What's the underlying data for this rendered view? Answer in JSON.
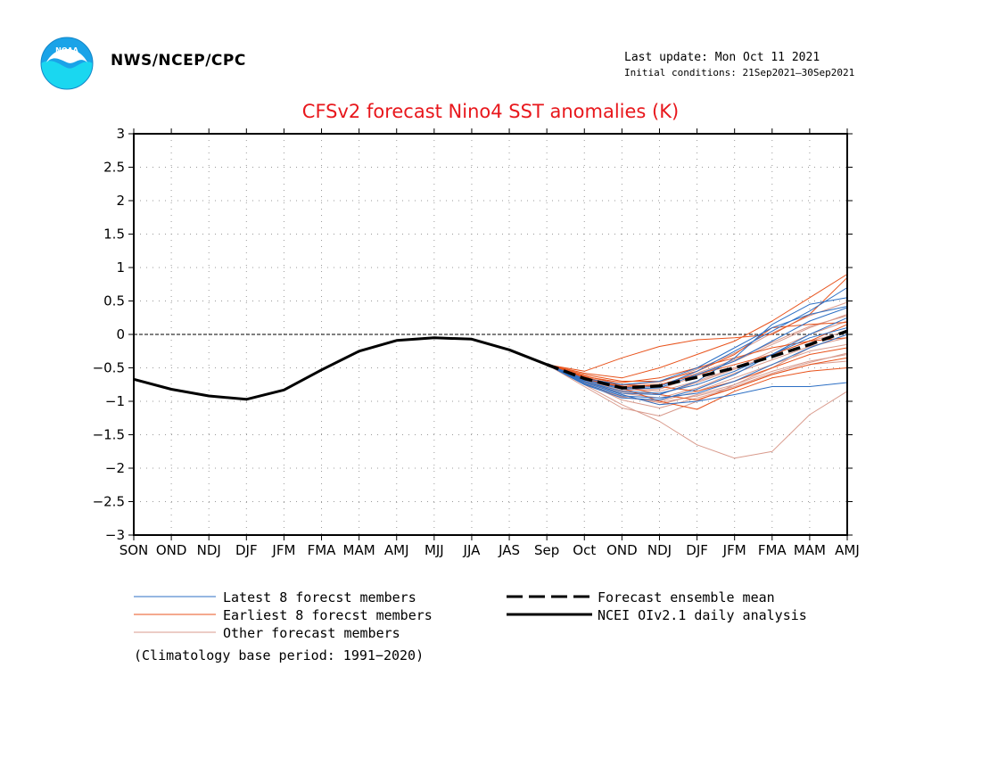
{
  "header": {
    "agency": "NWS/NCEP/CPC",
    "last_update": "Last update: Mon Oct 11 2021",
    "initial_conditions": "Initial conditions: 21Sep2021–30Sep2021",
    "logo_icon": "noaa-logo-icon",
    "logo_text": "NOAA"
  },
  "colors": {
    "title": "#e8171c",
    "latest": "#2c6fc4",
    "earliest": "#e8531c",
    "other": "#d99a8c",
    "mean": "#000000",
    "analysis": "#000000"
  },
  "legend": {
    "latest": "Latest 8 forecst members",
    "earliest": "Earliest 8 forecst members",
    "other": "Other forecast members",
    "mean": "Forecast ensemble mean",
    "analysis": "NCEI OIv2.1 daily analysis",
    "climatology": "(Climatology base period: 1991−2020)"
  },
  "chart_data": {
    "type": "line",
    "title": "CFSv2 forecast Nino4 SST anomalies (K)",
    "xlabel": "",
    "ylabel": "",
    "categories": [
      "SON",
      "OND",
      "NDJ",
      "DJF",
      "JFM",
      "FMA",
      "MAM",
      "AMJ",
      "MJJ",
      "JJA",
      "JAS",
      "Sep",
      "Oct",
      "OND",
      "NDJ",
      "DJF",
      "JFM",
      "FMA",
      "MAM",
      "AMJ"
    ],
    "ylim": [
      -3,
      3
    ],
    "yticks": [
      "3",
      "2.5",
      "2",
      "1.5",
      "1",
      "0.5",
      "0",
      "−0.5",
      "−1",
      "−1.5",
      "−2",
      "−2.5",
      "−3"
    ],
    "grid": true,
    "legend_position": "bottom",
    "series": [
      {
        "name": "NCEI OIv2.1 daily analysis",
        "role": "analysis",
        "x": [
          0,
          1,
          2,
          3,
          4,
          5,
          6,
          7,
          8,
          9,
          10,
          11
        ],
        "values": [
          -0.67,
          -0.82,
          -0.92,
          -0.97,
          -0.83,
          -0.53,
          -0.25,
          -0.09,
          -0.05,
          -0.07,
          -0.23,
          -0.45
        ]
      },
      {
        "name": "Forecast ensemble mean",
        "role": "mean",
        "x": [
          11,
          12,
          13,
          14,
          15,
          16,
          17,
          18,
          19
        ],
        "values": [
          -0.45,
          -0.66,
          -0.8,
          -0.77,
          -0.64,
          -0.5,
          -0.33,
          -0.15,
          0.05
        ]
      },
      {
        "role": "latest",
        "x": [
          11,
          12,
          13,
          14,
          15,
          16,
          17,
          18,
          19
        ],
        "values": [
          -0.45,
          -0.7,
          -0.88,
          -0.9,
          -0.7,
          -0.35,
          0.15,
          0.45,
          0.55
        ]
      },
      {
        "role": "latest",
        "x": [
          11,
          12,
          13,
          14,
          15,
          16,
          17,
          18,
          19
        ],
        "values": [
          -0.45,
          -0.75,
          -0.95,
          -0.98,
          -0.82,
          -0.6,
          -0.3,
          0.0,
          0.25
        ]
      },
      {
        "role": "latest",
        "x": [
          11,
          12,
          13,
          14,
          15,
          16,
          17,
          18,
          19
        ],
        "values": [
          -0.45,
          -0.68,
          -0.82,
          -0.8,
          -0.6,
          -0.4,
          -0.1,
          0.2,
          0.4
        ]
      },
      {
        "role": "latest",
        "x": [
          11,
          12,
          13,
          14,
          15,
          16,
          17,
          18,
          19
        ],
        "values": [
          -0.45,
          -0.72,
          -0.9,
          -1.05,
          -1.0,
          -0.9,
          -0.78,
          -0.78,
          -0.72
        ]
      },
      {
        "role": "latest",
        "x": [
          11,
          12,
          13,
          14,
          15,
          16,
          17,
          18,
          19
        ],
        "values": [
          -0.45,
          -0.66,
          -0.75,
          -0.7,
          -0.5,
          -0.2,
          0.1,
          0.3,
          0.42
        ]
      },
      {
        "role": "latest",
        "x": [
          11,
          12,
          13,
          14,
          15,
          16,
          17,
          18,
          19
        ],
        "values": [
          -0.45,
          -0.7,
          -0.85,
          -0.88,
          -0.75,
          -0.55,
          -0.3,
          -0.05,
          0.1
        ]
      },
      {
        "role": "latest",
        "x": [
          11,
          12,
          13,
          14,
          15,
          16,
          17,
          18,
          19
        ],
        "values": [
          -0.45,
          -0.74,
          -0.92,
          -0.95,
          -0.88,
          -0.7,
          -0.45,
          -0.2,
          0.0
        ]
      },
      {
        "role": "latest",
        "x": [
          11,
          12,
          13,
          14,
          15,
          16,
          17,
          18,
          19
        ],
        "values": [
          -0.45,
          -0.68,
          -0.8,
          -0.78,
          -0.55,
          -0.25,
          0.05,
          0.35,
          0.7
        ]
      },
      {
        "role": "earliest",
        "x": [
          11,
          12,
          13,
          14,
          15,
          16,
          17,
          18,
          19
        ],
        "values": [
          -0.45,
          -0.55,
          -0.35,
          -0.18,
          -0.08,
          -0.05,
          0.0,
          0.3,
          0.85
        ]
      },
      {
        "role": "earliest",
        "x": [
          11,
          12,
          13,
          14,
          15,
          16,
          17,
          18,
          19
        ],
        "values": [
          -0.45,
          -0.58,
          -0.65,
          -0.5,
          -0.3,
          -0.1,
          0.2,
          0.55,
          0.9
        ]
      },
      {
        "role": "earliest",
        "x": [
          11,
          12,
          13,
          14,
          15,
          16,
          17,
          18,
          19
        ],
        "values": [
          -0.45,
          -0.62,
          -0.75,
          -0.78,
          -0.85,
          -0.7,
          -0.5,
          -0.3,
          -0.2
        ]
      },
      {
        "role": "earliest",
        "x": [
          11,
          12,
          13,
          14,
          15,
          16,
          17,
          18,
          19
        ],
        "values": [
          -0.45,
          -0.65,
          -0.8,
          -1.0,
          -1.12,
          -0.85,
          -0.65,
          -0.55,
          -0.5
        ]
      },
      {
        "role": "earliest",
        "x": [
          11,
          12,
          13,
          14,
          15,
          16,
          17,
          18,
          19
        ],
        "values": [
          -0.45,
          -0.6,
          -0.7,
          -0.7,
          -0.55,
          -0.3,
          0.1,
          0.15,
          0.18
        ]
      },
      {
        "role": "earliest",
        "x": [
          11,
          12,
          13,
          14,
          15,
          16,
          17,
          18,
          19
        ],
        "values": [
          -0.45,
          -0.67,
          -0.78,
          -0.75,
          -0.6,
          -0.45,
          -0.3,
          -0.1,
          0.15
        ]
      },
      {
        "role": "earliest",
        "x": [
          11,
          12,
          13,
          14,
          15,
          16,
          17,
          18,
          19
        ],
        "values": [
          -0.45,
          -0.63,
          -0.72,
          -0.65,
          -0.5,
          -0.35,
          -0.2,
          -0.1,
          -0.05
        ]
      },
      {
        "role": "earliest",
        "x": [
          11,
          12,
          13,
          14,
          15,
          16,
          17,
          18,
          19
        ],
        "values": [
          -0.45,
          -0.64,
          -0.77,
          -0.9,
          -0.98,
          -0.8,
          -0.6,
          -0.45,
          -0.35
        ]
      },
      {
        "role": "other",
        "x": [
          11,
          12,
          13,
          14,
          15,
          16,
          17,
          18,
          19
        ],
        "values": [
          -0.45,
          -0.75,
          -1.05,
          -1.3,
          -1.65,
          -1.85,
          -1.75,
          -1.2,
          -0.85
        ]
      },
      {
        "role": "other",
        "x": [
          11,
          12,
          13,
          14,
          15,
          16,
          17,
          18,
          19
        ],
        "values": [
          -0.45,
          -0.78,
          -1.1,
          -1.22,
          -1.0,
          -0.75,
          -0.5,
          -0.2,
          0.0
        ]
      },
      {
        "role": "other",
        "x": [
          11,
          12,
          13,
          14,
          15,
          16,
          17,
          18,
          19
        ],
        "values": [
          -0.45,
          -0.7,
          -0.9,
          -1.05,
          -0.9,
          -0.75,
          -0.55,
          -0.4,
          -0.3
        ]
      },
      {
        "role": "other",
        "x": [
          11,
          12,
          13,
          14,
          15,
          16,
          17,
          18,
          19
        ],
        "values": [
          -0.45,
          -0.66,
          -0.8,
          -0.85,
          -0.7,
          -0.5,
          -0.25,
          0.0,
          0.2
        ]
      },
      {
        "role": "other",
        "x": [
          11,
          12,
          13,
          14,
          15,
          16,
          17,
          18,
          19
        ],
        "values": [
          -0.45,
          -0.72,
          -0.98,
          -1.1,
          -0.95,
          -0.8,
          -0.6,
          -0.45,
          -0.4
        ]
      },
      {
        "role": "other",
        "x": [
          11,
          12,
          13,
          14,
          15,
          16,
          17,
          18,
          19
        ],
        "values": [
          -0.45,
          -0.68,
          -0.84,
          -0.82,
          -0.62,
          -0.4,
          -0.15,
          0.1,
          0.3
        ]
      },
      {
        "role": "other",
        "x": [
          11,
          12,
          13,
          14,
          15,
          16,
          17,
          18,
          19
        ],
        "values": [
          -0.45,
          -0.74,
          -0.94,
          -1.0,
          -0.85,
          -0.65,
          -0.45,
          -0.25,
          -0.15
        ]
      },
      {
        "role": "other",
        "x": [
          11,
          12,
          13,
          14,
          15,
          16,
          17,
          18,
          19
        ],
        "values": [
          -0.45,
          -0.69,
          -0.86,
          -0.9,
          -0.72,
          -0.52,
          -0.3,
          -0.1,
          0.05
        ]
      },
      {
        "role": "other",
        "x": [
          11,
          12,
          13,
          14,
          15,
          16,
          17,
          18,
          19
        ],
        "values": [
          -0.45,
          -0.71,
          -0.88,
          -0.95,
          -0.8,
          -0.58,
          -0.38,
          -0.18,
          -0.05
        ]
      },
      {
        "role": "other",
        "x": [
          11,
          12,
          13,
          14,
          15,
          16,
          17,
          18,
          19
        ],
        "values": [
          -0.45,
          -0.67,
          -0.79,
          -0.76,
          -0.58,
          -0.38,
          -0.12,
          0.12,
          0.28
        ]
      },
      {
        "role": "other",
        "x": [
          11,
          12,
          13,
          14,
          15,
          16,
          17,
          18,
          19
        ],
        "values": [
          -0.45,
          -0.73,
          -0.93,
          -1.02,
          -0.92,
          -0.78,
          -0.58,
          -0.42,
          -0.28
        ]
      },
      {
        "role": "other",
        "x": [
          11,
          12,
          13,
          14,
          15,
          16,
          17,
          18,
          19
        ],
        "values": [
          -0.45,
          -0.65,
          -0.76,
          -0.72,
          -0.52,
          -0.28,
          0.02,
          0.28,
          0.48
        ]
      }
    ]
  }
}
